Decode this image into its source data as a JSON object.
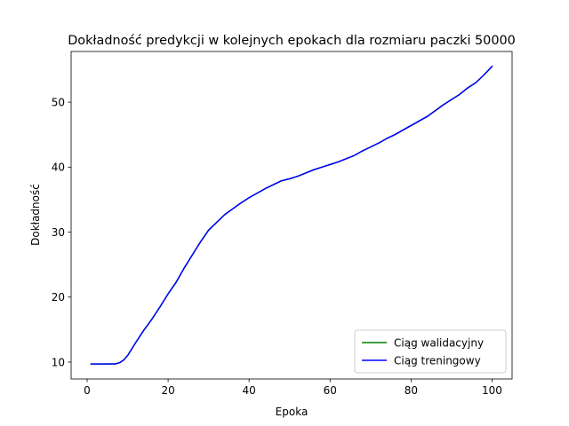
{
  "chart_data": {
    "type": "line",
    "title": "Dokładność predykcji w kolejnych epokach dla rozmiaru paczki 50000",
    "xlabel": "Epoka",
    "ylabel": "Dokładność",
    "xlim": [
      -3.95,
      104.95
    ],
    "ylim": [
      7.4,
      57.8
    ],
    "xticks": [
      0,
      20,
      40,
      60,
      80,
      100
    ],
    "yticks": [
      10,
      20,
      30,
      40,
      50
    ],
    "grid": false,
    "legend_position": "lower-right",
    "series": [
      {
        "name": "Ciąg walidacyjny",
        "color": "#008000",
        "points": [
          [
            1,
            9.7
          ],
          [
            4,
            9.7
          ],
          [
            7,
            9.72
          ],
          [
            8,
            9.9
          ],
          [
            9,
            10.3
          ],
          [
            10,
            11.0
          ],
          [
            12,
            13.0
          ],
          [
            14,
            14.9
          ],
          [
            16,
            16.6
          ],
          [
            18,
            18.5
          ],
          [
            20,
            20.5
          ],
          [
            22,
            22.3
          ],
          [
            24,
            24.5
          ],
          [
            26,
            26.5
          ],
          [
            28,
            28.5
          ],
          [
            30,
            30.3
          ],
          [
            32,
            31.5
          ],
          [
            34,
            32.7
          ],
          [
            36,
            33.6
          ],
          [
            38,
            34.5
          ],
          [
            40,
            35.3
          ],
          [
            42,
            36.0
          ],
          [
            44,
            36.7
          ],
          [
            46,
            37.3
          ],
          [
            48,
            37.9
          ],
          [
            50,
            38.2
          ],
          [
            52,
            38.6
          ],
          [
            54,
            39.1
          ],
          [
            56,
            39.6
          ],
          [
            58,
            40.0
          ],
          [
            60,
            40.4
          ],
          [
            62,
            40.8
          ],
          [
            64,
            41.3
          ],
          [
            66,
            41.8
          ],
          [
            68,
            42.5
          ],
          [
            70,
            43.1
          ],
          [
            72,
            43.7
          ],
          [
            74,
            44.4
          ],
          [
            76,
            45.0
          ],
          [
            78,
            45.7
          ],
          [
            80,
            46.4
          ],
          [
            82,
            47.1
          ],
          [
            84,
            47.8
          ],
          [
            86,
            48.7
          ],
          [
            88,
            49.6
          ],
          [
            90,
            50.4
          ],
          [
            92,
            51.2
          ],
          [
            94,
            52.2
          ],
          [
            96,
            53.0
          ],
          [
            98,
            54.2
          ],
          [
            100,
            55.5
          ]
        ]
      },
      {
        "name": "Ciąg treningowy",
        "color": "#0000ff",
        "points": [
          [
            1,
            9.7
          ],
          [
            4,
            9.7
          ],
          [
            7,
            9.72
          ],
          [
            8,
            9.9
          ],
          [
            9,
            10.3
          ],
          [
            10,
            11.0
          ],
          [
            12,
            13.0
          ],
          [
            14,
            14.9
          ],
          [
            16,
            16.6
          ],
          [
            18,
            18.5
          ],
          [
            20,
            20.5
          ],
          [
            22,
            22.3
          ],
          [
            24,
            24.5
          ],
          [
            26,
            26.5
          ],
          [
            28,
            28.5
          ],
          [
            30,
            30.3
          ],
          [
            32,
            31.5
          ],
          [
            34,
            32.7
          ],
          [
            36,
            33.6
          ],
          [
            38,
            34.5
          ],
          [
            40,
            35.3
          ],
          [
            42,
            36.0
          ],
          [
            44,
            36.7
          ],
          [
            46,
            37.3
          ],
          [
            48,
            37.9
          ],
          [
            50,
            38.2
          ],
          [
            52,
            38.6
          ],
          [
            54,
            39.1
          ],
          [
            56,
            39.6
          ],
          [
            58,
            40.0
          ],
          [
            60,
            40.4
          ],
          [
            62,
            40.8
          ],
          [
            64,
            41.3
          ],
          [
            66,
            41.8
          ],
          [
            68,
            42.5
          ],
          [
            70,
            43.1
          ],
          [
            72,
            43.7
          ],
          [
            74,
            44.4
          ],
          [
            76,
            45.0
          ],
          [
            78,
            45.7
          ],
          [
            80,
            46.4
          ],
          [
            82,
            47.1
          ],
          [
            84,
            47.8
          ],
          [
            86,
            48.7
          ],
          [
            88,
            49.6
          ],
          [
            90,
            50.4
          ],
          [
            92,
            51.2
          ],
          [
            94,
            52.2
          ],
          [
            96,
            53.0
          ],
          [
            98,
            54.2
          ],
          [
            100,
            55.5
          ]
        ]
      }
    ]
  }
}
